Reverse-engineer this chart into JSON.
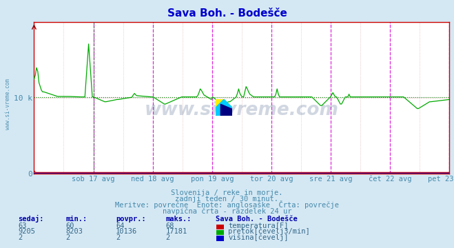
{
  "title": "Sava Boh. - Bodešče",
  "title_color": "#0000cc",
  "bg_color": "#d4e8f4",
  "plot_bg_color": "#ffffff",
  "grid_color": "#ddaaaa",
  "vline_color": "#dd00dd",
  "x_labels": [
    "sob 17 avg",
    "ned 18 avg",
    "pon 19 avg",
    "tor 20 avg",
    "sre 21 avg",
    "čet 22 avg",
    "pet 23 avg"
  ],
  "y_tick_value": 10000,
  "y_min": 0,
  "y_max": 20000,
  "avg_line_color": "#007700",
  "avg_line_value": 10136,
  "temperature_color": "#cc0000",
  "flow_color": "#00aa00",
  "height_color": "#0000cc",
  "border_color": "#cc0000",
  "watermark": "www.si-vreme.com",
  "watermark_color": "#1a3a6a",
  "watermark_alpha": 0.2,
  "sub_text_1": "Slovenija / reke in morje.",
  "sub_text_2": "zadnji teden / 30 minut.",
  "sub_text_3": "Meritve: povrečne  Enote: anglosaške  Črta: povrečje",
  "sub_text_4": "navpična črta - razdelek 24 ur",
  "sub_color": "#4488aa",
  "legend_title": "Sava Boh. - Bodešče",
  "legend_items": [
    "temperatura[F]",
    "pretok[čevelj3/min]",
    "višina[čevelj]"
  ],
  "legend_colors": [
    "#cc0000",
    "#00aa00",
    "#0000cc"
  ],
  "table_headers": [
    "sedaj:",
    "min.:",
    "povpr.:",
    "maks.:"
  ],
  "table_values": [
    [
      63,
      60,
      64,
      68
    ],
    [
      9205,
      8203,
      10136,
      17181
    ],
    [
      2,
      2,
      2,
      2
    ]
  ],
  "table_color": "#336688",
  "table_bold_color": "#0000aa",
  "n_points": 336,
  "days": 7,
  "flow_base": 10136,
  "flow_min": 8203,
  "flow_max": 17181,
  "temp_sedaj": 63,
  "temp_min": 60,
  "temp_avg": 64,
  "temp_max": 68
}
